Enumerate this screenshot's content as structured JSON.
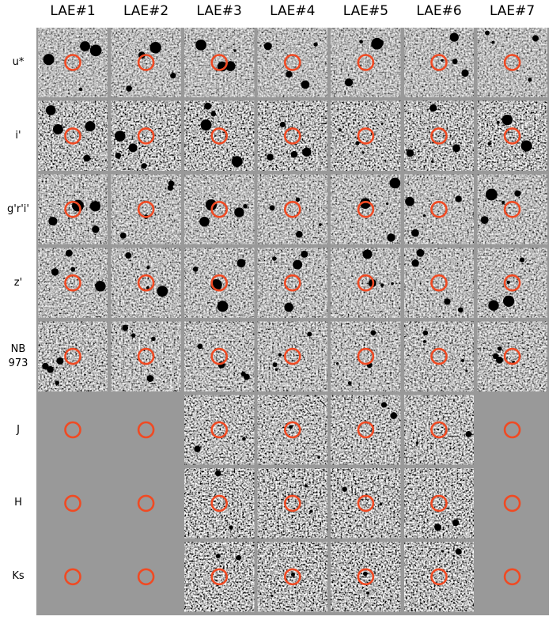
{
  "columns": [
    "LAE#1",
    "LAE#2",
    "LAE#3",
    "LAE#4",
    "LAE#5",
    "LAE#6",
    "LAE#7"
  ],
  "rows": [
    "u*",
    "i'",
    "g'r'i'",
    "z'",
    "NB\n973",
    "J",
    "H",
    "Ks"
  ]
}
